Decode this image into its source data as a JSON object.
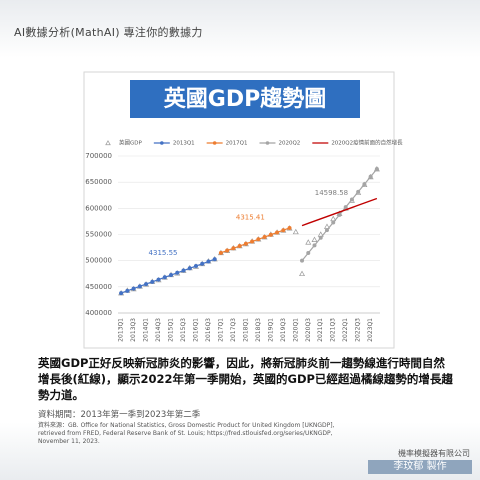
{
  "header": "AI數據分析(MathAI) 專注你的數據力",
  "chart_data": {
    "type": "line",
    "title": "英國GDP趨勢圖",
    "categories": [
      "2013Q1",
      null,
      "2013Q3",
      null,
      "2014Q1",
      null,
      "2014Q3",
      null,
      "2015Q1",
      null,
      "2015Q3",
      null,
      "2016Q1",
      null,
      "2016Q3",
      null,
      "2017Q1",
      null,
      "2017Q3",
      null,
      "2018Q1",
      null,
      "2018Q3",
      null,
      "2019Q1",
      null,
      "2019Q3",
      null,
      "2020Q1",
      null,
      "2020Q3",
      null,
      "2021Q1",
      null,
      "2021Q3",
      null,
      "2022Q1",
      null,
      "2022Q3",
      null,
      "2023Q1",
      null
    ],
    "series": [
      {
        "name": "英國GDP",
        "color": "#9a9a9a",
        "marker": "triangle",
        "line": false,
        "values": [
          438000,
          443000,
          446000,
          451000,
          455000,
          460000,
          463000,
          468000,
          473000,
          476000,
          481000,
          486000,
          489000,
          494000,
          499000,
          503000,
          515000,
          519000,
          524000,
          528000,
          532000,
          537000,
          541000,
          545000,
          550000,
          554000,
          558000,
          562000,
          555000,
          475000,
          535000,
          540000,
          550000,
          565000,
          580000,
          590000,
          600000,
          615000,
          630000,
          645000,
          660000,
          675000
        ]
      },
      {
        "name": "2013Q1",
        "color": "#4472c4",
        "marker": "circle",
        "line": true,
        "values": [
          438000,
          442316,
          446631,
          450947,
          455262,
          459578,
          463893,
          468209,
          472524,
          476840,
          481155,
          485471,
          489787,
          494102,
          498418,
          502733,
          null,
          null,
          null,
          null,
          null,
          null,
          null,
          null,
          null,
          null,
          null,
          null,
          null,
          null,
          null,
          null,
          null,
          null,
          null,
          null,
          null,
          null,
          null,
          null,
          null,
          null
        ]
      },
      {
        "name": "2017Q1",
        "color": "#ed7d31",
        "marker": "circle",
        "line": true,
        "values": [
          null,
          null,
          null,
          null,
          null,
          null,
          null,
          null,
          null,
          null,
          null,
          null,
          null,
          null,
          null,
          null,
          515000,
          519315,
          523631,
          527946,
          532262,
          536577,
          540892,
          545208,
          549523,
          553838,
          558154,
          562469,
          null,
          null,
          null,
          null,
          null,
          null,
          null,
          null,
          null,
          null,
          null,
          null,
          null,
          null
        ]
      },
      {
        "name": "2020Q2",
        "color": "#a5a5a5",
        "marker": "circle",
        "line": true,
        "values": [
          null,
          null,
          null,
          null,
          null,
          null,
          null,
          null,
          null,
          null,
          null,
          null,
          null,
          null,
          null,
          null,
          null,
          null,
          null,
          null,
          null,
          null,
          null,
          null,
          null,
          null,
          null,
          null,
          null,
          500000,
          514599,
          529197,
          543796,
          558394,
          572993,
          587592,
          602190,
          616789,
          631387,
          645986,
          660584,
          675183
        ]
      },
      {
        "name": "2020Q2疫情前面的自然增長",
        "color": "#c00000",
        "marker": "none",
        "line": true,
        "values": [
          null,
          null,
          null,
          null,
          null,
          null,
          null,
          null,
          null,
          null,
          null,
          null,
          null,
          null,
          null,
          null,
          null,
          null,
          null,
          null,
          null,
          null,
          null,
          null,
          null,
          null,
          null,
          null,
          null,
          567000,
          571315,
          575631,
          579946,
          584262,
          588577,
          592892,
          597208,
          601523,
          605838,
          610154,
          614469,
          618785
        ]
      }
    ],
    "annotations": [
      {
        "text": "4315.55",
        "color": "#4472c4"
      },
      {
        "text": "4315.41",
        "color": "#ed7d31"
      },
      {
        "text": "14598.58",
        "color": "#7f7f7f"
      }
    ],
    "ylim": [
      400000,
      700000
    ],
    "yticks": [
      400000,
      450000,
      500000,
      550000,
      600000,
      650000,
      700000
    ],
    "grid": true,
    "legend": "top"
  },
  "paragraph": [
    "英國GDP正好反映新冠肺炎的影響，因此，將新冠肺炎前一趨勢線進行時間自然",
    "增長後(紅線)，顯示2022年第一季開始，英國的GDP已經超過橘線趨勢的增長趨",
    "勢力道。"
  ],
  "source": {
    "period": "資料期間：2013年第一季到2023年第二季",
    "lines": [
      "資料來源：GB. Office for National Statistics, Gross Domestic Product for United Kingdom [UKNGDP],",
      "retrieved from FRED, Federal Reserve Bank of St. Louis; https://fred.stlouisfed.org/series/UKNGDP,",
      "November 11, 2023."
    ]
  },
  "footer": {
    "company": "機率模擬器有限公司",
    "maker": "李玟郁 製作"
  }
}
